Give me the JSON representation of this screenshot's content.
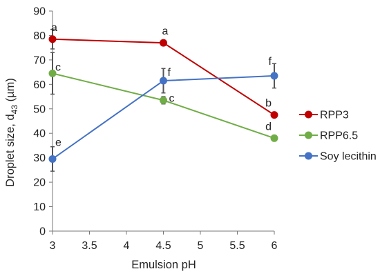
{
  "chart_data": {
    "type": "line",
    "title": "",
    "xlabel": "Emulsion pH",
    "ylabel": "Droplet size, d43 (µm)",
    "ylabel_parts": {
      "main": "Droplet size, d",
      "sub": "43",
      "unit": " (µm)"
    },
    "xlim": [
      3,
      6
    ],
    "ylim": [
      0,
      90
    ],
    "x_ticks": [
      "3",
      "3.5",
      "4",
      "4.5",
      "5",
      "5.5",
      "6"
    ],
    "y_ticks": [
      "0",
      "10",
      "20",
      "30",
      "40",
      "50",
      "60",
      "70",
      "80",
      "90"
    ],
    "grid": false,
    "legend_position": "right",
    "series": [
      {
        "name": "RPP3",
        "color": "#c00000",
        "x": [
          3,
          4.5,
          6
        ],
        "y": [
          78.5,
          77,
          47.5
        ],
        "error": [
          4,
          0,
          0
        ],
        "labels": [
          "a",
          "a",
          "b"
        ]
      },
      {
        "name": "RPP6.5",
        "color": "#70ad47",
        "x": [
          3,
          4.5,
          6
        ],
        "y": [
          64.5,
          53.5,
          38
        ],
        "error": [
          8.5,
          1.5,
          0
        ],
        "labels": [
          "c",
          "c",
          "d"
        ]
      },
      {
        "name": "Soy lecithin",
        "color": "#4472c4",
        "x": [
          3,
          4.5,
          6
        ],
        "y": [
          29.5,
          61.5,
          63.5
        ],
        "error": [
          5,
          5,
          5
        ],
        "labels": [
          "e",
          "f",
          "f"
        ]
      }
    ]
  }
}
